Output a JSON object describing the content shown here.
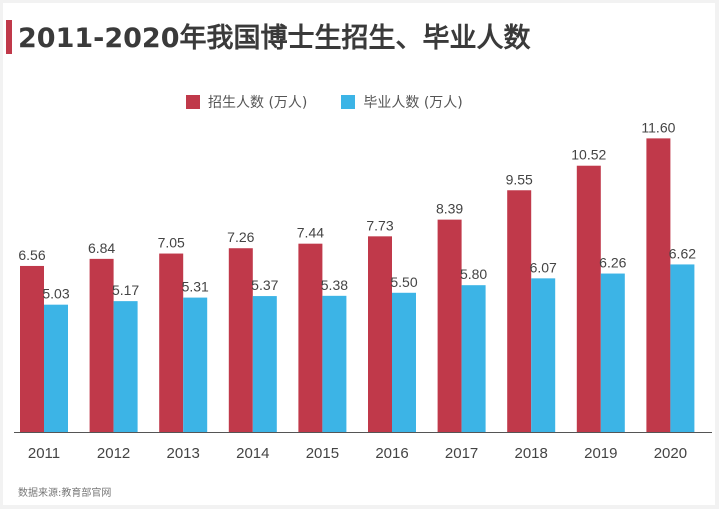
{
  "title": "2011-2020年我国博士生招生、毕业人数",
  "source": "数据来源:教育部官网",
  "colors": {
    "enroll": "#c0394a",
    "grad": "#3cb4e6",
    "accent": "#c0394a"
  },
  "chart_data": {
    "type": "bar",
    "title": "2011-2020年我国博士生招生、毕业人数",
    "categories": [
      "2011",
      "2012",
      "2013",
      "2014",
      "2015",
      "2016",
      "2017",
      "2018",
      "2019",
      "2020"
    ],
    "series": [
      {
        "name": "招生人数 (万人)",
        "values": [
          6.56,
          6.84,
          7.05,
          7.26,
          7.44,
          7.73,
          8.39,
          9.55,
          10.52,
          11.6
        ],
        "labels": [
          "6.56",
          "6.84",
          "7.05",
          "7.26",
          "7.44",
          "7.73",
          "8.39",
          "9.55",
          "10.52",
          "11.60"
        ]
      },
      {
        "name": "毕业人数 (万人)",
        "values": [
          5.03,
          5.17,
          5.31,
          5.37,
          5.38,
          5.5,
          5.8,
          6.07,
          6.26,
          6.62
        ],
        "labels": [
          "5.03",
          "5.17",
          "5.31",
          "5.37",
          "5.38",
          "5.50",
          "5.80",
          "6.07",
          "6.26",
          "6.62"
        ]
      }
    ],
    "xlabel": "",
    "ylabel": "",
    "ylim": [
      0,
      12.8
    ],
    "grid": false,
    "legend_position": "top-center"
  }
}
